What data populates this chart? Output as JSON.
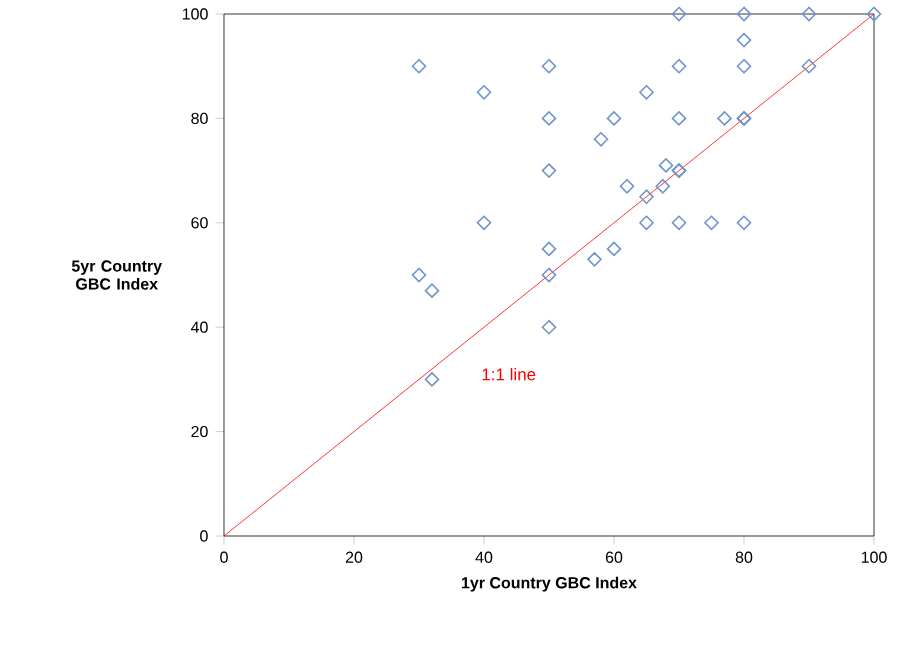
{
  "chart_data": {
    "type": "scatter",
    "xlabel": "1yr Country GBC Index",
    "ylabel": "5yr Country GBC Index",
    "xlim": [
      0,
      100
    ],
    "ylim": [
      0,
      100
    ],
    "xticks": [
      0,
      20,
      40,
      60,
      80,
      100
    ],
    "yticks": [
      0,
      20,
      40,
      60,
      80,
      100
    ],
    "grid": false,
    "marker": "diamond",
    "series": [
      {
        "color": "#6f95c9",
        "x": [
          30,
          30,
          32,
          32,
          40,
          40,
          50,
          50,
          50,
          50,
          50,
          50,
          57,
          58,
          60,
          60,
          62,
          65,
          65,
          65,
          68,
          67.5,
          70,
          70,
          70,
          70,
          70,
          70,
          75,
          77,
          80,
          80,
          80,
          80,
          80,
          80,
          90,
          90,
          100
        ],
        "values": [
          90,
          50,
          47,
          30,
          85,
          60,
          90,
          80,
          70,
          55,
          50,
          40,
          53,
          76,
          80,
          55,
          67,
          85,
          65,
          60,
          71,
          67,
          100,
          90,
          80,
          70,
          60,
          70,
          60,
          80,
          100,
          95,
          90,
          80,
          60,
          80,
          100,
          90,
          100
        ]
      },
      {
        "type": "line",
        "marker": "none",
        "color": "#ff0000",
        "x": [
          0,
          100
        ],
        "values": [
          0,
          100
        ]
      }
    ],
    "annotations": [
      "1:1 line"
    ]
  }
}
